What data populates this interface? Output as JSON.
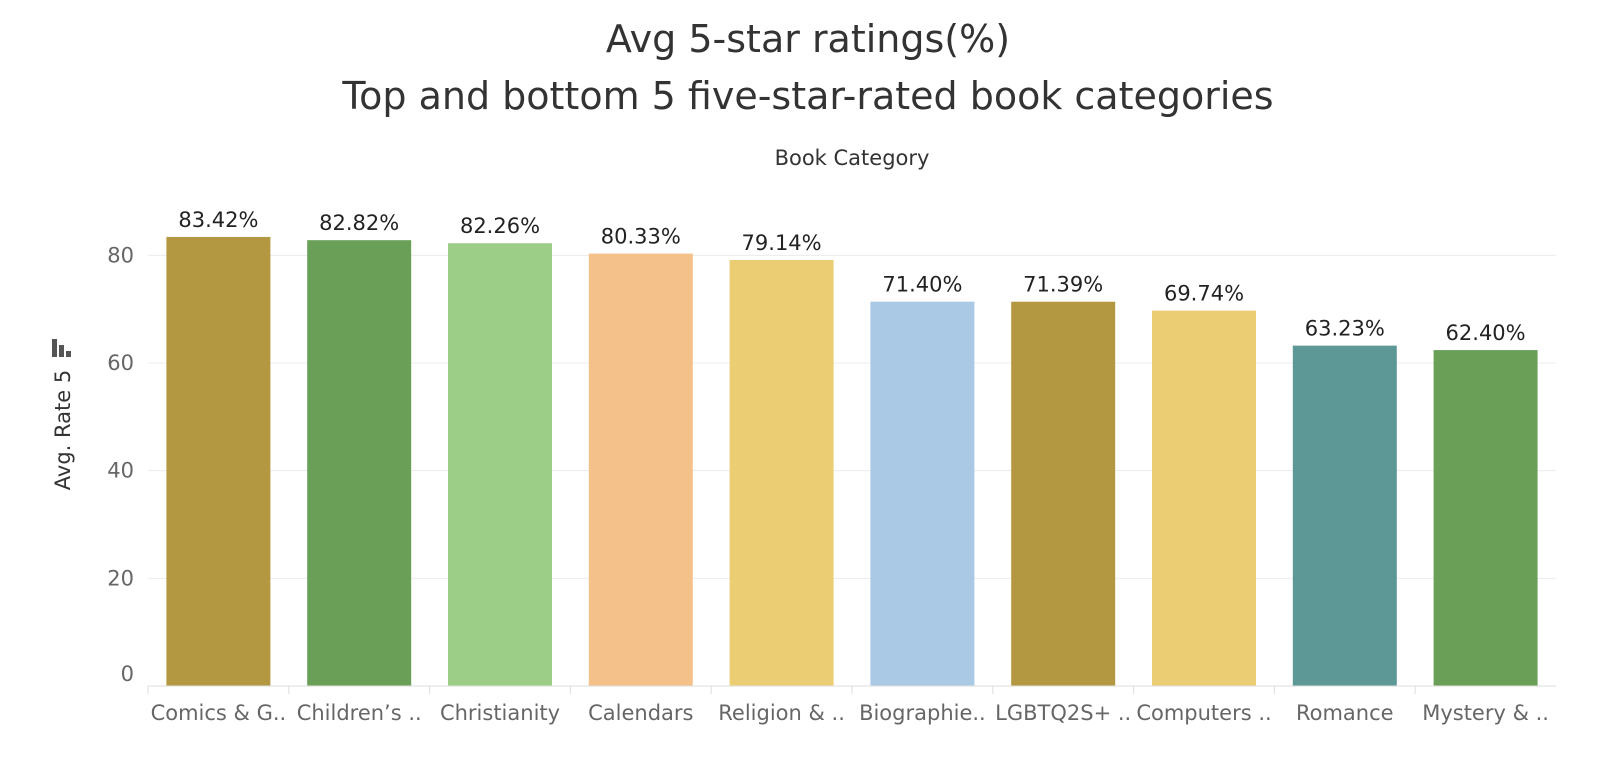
{
  "chart_data": {
    "type": "bar",
    "title": "Avg 5-star ratings(%)",
    "subtitle": "Top and bottom 5 five-star-rated book categories",
    "column_header": "Book Category",
    "ylabel": "Avg. Rate 5",
    "ylim": [
      0,
      92
    ],
    "yticks": [
      0,
      20,
      40,
      60,
      80
    ],
    "grid": true,
    "categories": [
      "Comics & G..",
      "Children’s ..",
      "Christianity",
      "Calendars",
      "Religion & ..",
      "Biographie..",
      "LGBTQ2S+ ..",
      "Computers ..",
      "Romance",
      "Mystery & .."
    ],
    "values": [
      83.42,
      82.82,
      82.26,
      80.33,
      79.14,
      71.4,
      71.39,
      69.74,
      63.23,
      62.4
    ],
    "value_labels": [
      "83.42%",
      "82.82%",
      "82.26%",
      "80.33%",
      "79.14%",
      "71.40%",
      "71.39%",
      "69.74%",
      "63.23%",
      "62.40%"
    ],
    "colors": [
      "#b39841",
      "#6a9f58",
      "#9dce88",
      "#f5c18a",
      "#ebcd74",
      "#a9c9e4",
      "#b39841",
      "#ebcd74",
      "#5d9796",
      "#6a9f58"
    ]
  }
}
